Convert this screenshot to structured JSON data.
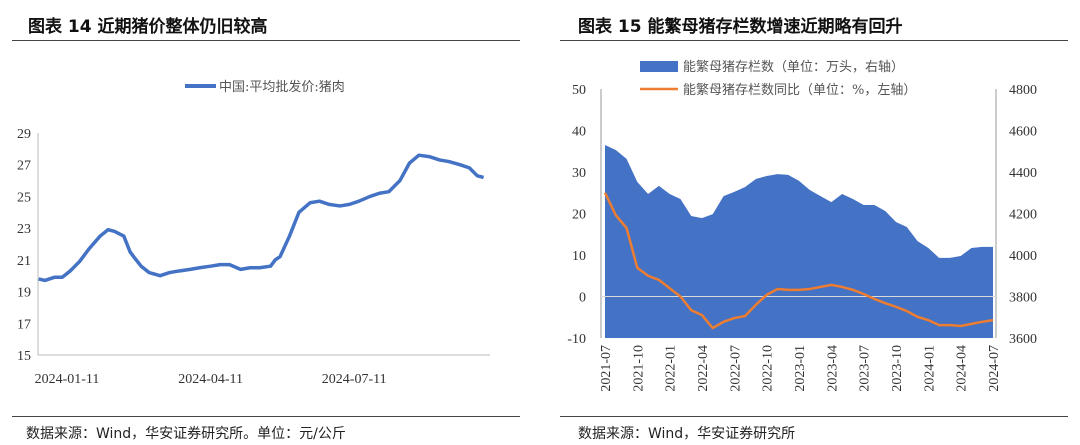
{
  "left": {
    "title": "图表 14  近期猪价整体仍旧较高",
    "source": "数据来源：Wind，华安证券研究所。单位：元/公斤"
  },
  "right": {
    "title": "图表 15  能繁母猪存栏数增速近期略有回升",
    "source": "数据来源：Wind，华安证券研究所"
  },
  "colors": {
    "blue": "#4472C4",
    "orange": "#ED7D31"
  },
  "chart_data": [
    {
      "type": "line",
      "title": "近期猪价整体仍旧较高",
      "ylim": [
        15,
        29
      ],
      "yticks": [
        "15",
        "17",
        "19",
        "21",
        "23",
        "25",
        "27",
        "29"
      ],
      "x_unit": "days since 2024-01-11",
      "xticks": [
        {
          "x": 0,
          "label": "2024-01-11"
        },
        {
          "x": 91,
          "label": "2024-04-11"
        },
        {
          "x": 182,
          "label": "2024-07-11"
        }
      ],
      "legend": "中国:平均批发价:猪肉",
      "series": [
        {
          "name": "中国:平均批发价:猪肉",
          "x": [
            -18,
            -14,
            -8,
            -3,
            2,
            8,
            14,
            21,
            26,
            30,
            36,
            40,
            43,
            47,
            52,
            59,
            65,
            71,
            78,
            84,
            91,
            97,
            103,
            110,
            116,
            122,
            129,
            132,
            135,
            141,
            147,
            154,
            160,
            166,
            173,
            179,
            185,
            192,
            198,
            204,
            211,
            217,
            223,
            230,
            236,
            242,
            249,
            255,
            260,
            264
          ],
          "y": [
            19.8,
            19.7,
            19.9,
            19.9,
            20.3,
            20.9,
            21.7,
            22.5,
            22.9,
            22.8,
            22.5,
            21.5,
            21.1,
            20.6,
            20.2,
            20.0,
            20.2,
            20.3,
            20.4,
            20.5,
            20.6,
            20.7,
            20.7,
            20.4,
            20.5,
            20.5,
            20.6,
            21.0,
            21.2,
            22.5,
            24.0,
            24.6,
            24.7,
            24.5,
            24.4,
            24.5,
            24.7,
            25.0,
            25.2,
            25.3,
            26.0,
            27.1,
            27.6,
            27.5,
            27.3,
            27.2,
            27.0,
            26.8,
            26.3,
            26.2
          ]
        }
      ]
    },
    {
      "type": "area+line",
      "title": "能繁母猪存栏数增速近期略有回升",
      "categories": [
        "2021-07",
        "2021-08",
        "2021-09",
        "2021-10",
        "2021-11",
        "2021-12",
        "2022-01",
        "2022-02",
        "2022-03",
        "2022-04",
        "2022-05",
        "2022-06",
        "2022-07",
        "2022-08",
        "2022-09",
        "2022-10",
        "2022-11",
        "2022-12",
        "2023-01",
        "2023-02",
        "2023-03",
        "2023-04",
        "2023-05",
        "2023-06",
        "2023-07",
        "2023-08",
        "2023-09",
        "2023-10",
        "2023-11",
        "2023-12",
        "2024-01",
        "2024-02",
        "2024-03",
        "2024-04",
        "2024-05",
        "2024-06",
        "2024-07"
      ],
      "xtick_labels": [
        "2021-07",
        "2021-10",
        "2022-01",
        "2022-04",
        "2022-07",
        "2022-10",
        "2023-01",
        "2023-04",
        "2023-07",
        "2023-10",
        "2024-01",
        "2024-04",
        "2024-07"
      ],
      "ylim_left": [
        -10,
        50
      ],
      "yticks_left": [
        "-10",
        "0",
        "10",
        "20",
        "30",
        "40",
        "50"
      ],
      "ylim_right": [
        3600,
        4800
      ],
      "yticks_right": [
        "3600",
        "3800",
        "4000",
        "4200",
        "4400",
        "4600",
        "4800"
      ],
      "series": [
        {
          "name": "能繁母猪存栏数（单位：万头，右轴）",
          "type": "area",
          "axis": "right",
          "values": [
            4530,
            4506,
            4463,
            4352,
            4294,
            4333,
            4294,
            4270,
            4188,
            4178,
            4197,
            4284,
            4304,
            4328,
            4366,
            4381,
            4390,
            4386,
            4357,
            4313,
            4284,
            4255,
            4294,
            4270,
            4241,
            4241,
            4212,
            4159,
            4135,
            4067,
            4034,
            3986,
            3986,
            3995,
            4034,
            4039,
            4039
          ]
        },
        {
          "name": "能繁母猪存栏数同比（单位：%，左轴）",
          "type": "line",
          "axis": "left",
          "values": [
            25,
            19.6,
            16.5,
            6.9,
            5,
            4,
            2,
            0,
            -3.3,
            -4.5,
            -7.6,
            -6.1,
            -5.2,
            -4.7,
            -2,
            0.4,
            1.8,
            1.6,
            1.6,
            1.8,
            2.3,
            2.8,
            2.3,
            1.6,
            0.6,
            -0.6,
            -1.6,
            -2.5,
            -3.5,
            -4.9,
            -5.7,
            -6.9,
            -6.9,
            -7.1,
            -6.6,
            -6.1,
            -5.7
          ]
        }
      ]
    }
  ]
}
